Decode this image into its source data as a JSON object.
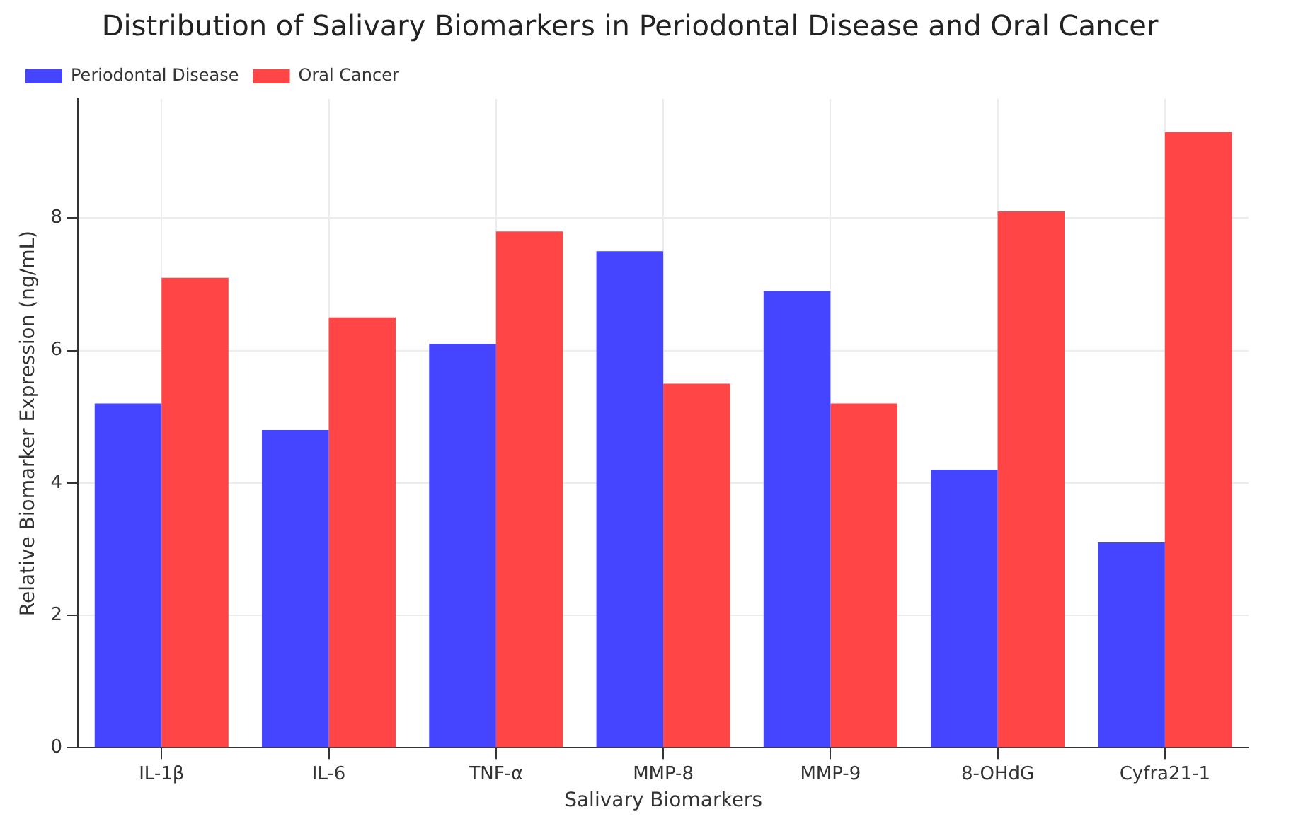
{
  "chart_data": {
    "type": "bar",
    "title": "Distribution of Salivary Biomarkers in Periodontal Disease and Oral Cancer",
    "xlabel": "Salivary Biomarkers",
    "ylabel": "Relative Biomarker Expression (ng/mL)",
    "categories": [
      "IL-1β",
      "IL-6",
      "TNF-α",
      "MMP-8",
      "MMP-9",
      "8-OHdG",
      "Cyfra21-1"
    ],
    "series": [
      {
        "name": "Periodontal Disease",
        "color": "#4545ff",
        "values": [
          5.2,
          4.8,
          6.1,
          7.5,
          6.9,
          4.2,
          3.1
        ]
      },
      {
        "name": "Oral Cancer",
        "color": "#ff4545",
        "values": [
          7.1,
          6.5,
          7.8,
          5.5,
          5.2,
          8.1,
          9.3
        ]
      }
    ],
    "ylim": [
      0,
      9.8
    ],
    "yticks": [
      0,
      2,
      4,
      6,
      8
    ],
    "grid": true,
    "legend": "top left"
  }
}
